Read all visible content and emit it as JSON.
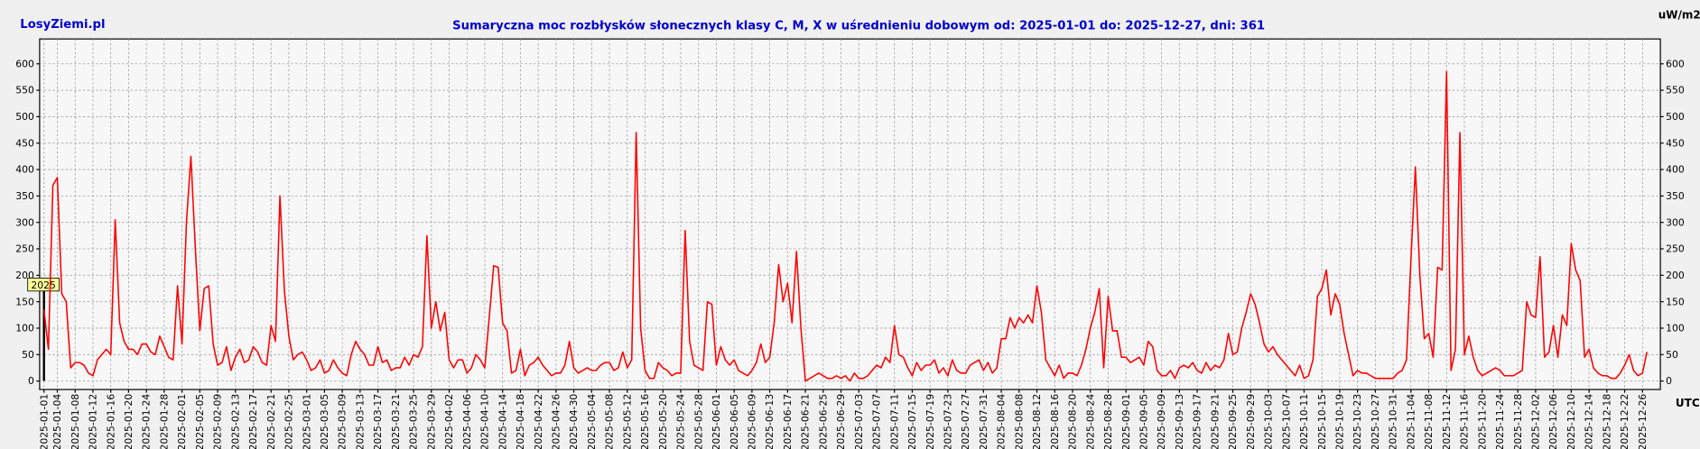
{
  "chart_data": {
    "type": "line",
    "site": "LosyZiemi.pl",
    "title": "Sumaryczna moc rozbłysków słonecznych klasy C, M, X w uśrednieniu dobowym od: 2025-01-01 do: 2025-12-27, dni: 361",
    "y_unit": "uW/m2",
    "x_unit": "UTC",
    "year_marker": "2025",
    "x": [
      "2025-01-01",
      "2025-01-02",
      "2025-01-03",
      "2025-01-04",
      "2025-01-05",
      "2025-01-06",
      "2025-01-07",
      "2025-01-08",
      "2025-01-09",
      "2025-01-10",
      "2025-01-11",
      "2025-01-12",
      "2025-01-13",
      "2025-01-14",
      "2025-01-15",
      "2025-01-16",
      "2025-01-17",
      "2025-01-18",
      "2025-01-19",
      "2025-01-20",
      "2025-01-21",
      "2025-01-22",
      "2025-01-23",
      "2025-01-24",
      "2025-01-25",
      "2025-01-26",
      "2025-01-27",
      "2025-01-28",
      "2025-01-29",
      "2025-01-30",
      "2025-01-31",
      "2025-02-01",
      "2025-02-02",
      "2025-02-03",
      "2025-02-04",
      "2025-02-05",
      "2025-02-06",
      "2025-02-07",
      "2025-02-08",
      "2025-02-09",
      "2025-02-10",
      "2025-02-11",
      "2025-02-12",
      "2025-02-13",
      "2025-02-14",
      "2025-02-15",
      "2025-02-16",
      "2025-02-17",
      "2025-02-18",
      "2025-02-19",
      "2025-02-20",
      "2025-02-21",
      "2025-02-22",
      "2025-02-23",
      "2025-02-24",
      "2025-02-25",
      "2025-02-26",
      "2025-02-27",
      "2025-02-28",
      "2025-03-01",
      "2025-03-02",
      "2025-03-03",
      "2025-03-04",
      "2025-03-05",
      "2025-03-06",
      "2025-03-07",
      "2025-03-08",
      "2025-03-09",
      "2025-03-10",
      "2025-03-11",
      "2025-03-12",
      "2025-03-13",
      "2025-03-14",
      "2025-03-15",
      "2025-03-16",
      "2025-03-17",
      "2025-03-18",
      "2025-03-19",
      "2025-03-20",
      "2025-03-21",
      "2025-03-22",
      "2025-03-23",
      "2025-03-24",
      "2025-03-25",
      "2025-03-26",
      "2025-03-27",
      "2025-03-28",
      "2025-03-29",
      "2025-03-30",
      "2025-03-31",
      "2025-04-01",
      "2025-04-02",
      "2025-04-03",
      "2025-04-04",
      "2025-04-05",
      "2025-04-06",
      "2025-04-07",
      "2025-04-08",
      "2025-04-09",
      "2025-04-10",
      "2025-04-11",
      "2025-04-12",
      "2025-04-13",
      "2025-04-14",
      "2025-04-15",
      "2025-04-16",
      "2025-04-17",
      "2025-04-18",
      "2025-04-19",
      "2025-04-20",
      "2025-04-21",
      "2025-04-22",
      "2025-04-23",
      "2025-04-24",
      "2025-04-25",
      "2025-04-26",
      "2025-04-27",
      "2025-04-28",
      "2025-04-29",
      "2025-04-30",
      "2025-05-01",
      "2025-05-02",
      "2025-05-03",
      "2025-05-04",
      "2025-05-05",
      "2025-05-06",
      "2025-05-07",
      "2025-05-08",
      "2025-05-09",
      "2025-05-10",
      "2025-05-11",
      "2025-05-12",
      "2025-05-13",
      "2025-05-14",
      "2025-05-15",
      "2025-05-16",
      "2025-05-17",
      "2025-05-18",
      "2025-05-19",
      "2025-05-20",
      "2025-05-21",
      "2025-05-22",
      "2025-05-23",
      "2025-05-24",
      "2025-05-25",
      "2025-05-26",
      "2025-05-27",
      "2025-05-28",
      "2025-05-29",
      "2025-05-30",
      "2025-05-31",
      "2025-06-01",
      "2025-06-02",
      "2025-06-03",
      "2025-06-04",
      "2025-06-05",
      "2025-06-06",
      "2025-06-07",
      "2025-06-08",
      "2025-06-09",
      "2025-06-10",
      "2025-06-11",
      "2025-06-12",
      "2025-06-13",
      "2025-06-14",
      "2025-06-15",
      "2025-06-16",
      "2025-06-17",
      "2025-06-18",
      "2025-06-19",
      "2025-06-20",
      "2025-06-21",
      "2025-06-22",
      "2025-06-23",
      "2025-06-24",
      "2025-06-25",
      "2025-06-26",
      "2025-06-27",
      "2025-06-28",
      "2025-06-29",
      "2025-06-30",
      "2025-07-01",
      "2025-07-02",
      "2025-07-03",
      "2025-07-04",
      "2025-07-05",
      "2025-07-06",
      "2025-07-07",
      "2025-07-08",
      "2025-07-09",
      "2025-07-10",
      "2025-07-11",
      "2025-07-12",
      "2025-07-13",
      "2025-07-14",
      "2025-07-15",
      "2025-07-16",
      "2025-07-17",
      "2025-07-18",
      "2025-07-19",
      "2025-07-20",
      "2025-07-21",
      "2025-07-22",
      "2025-07-23",
      "2025-07-24",
      "2025-07-25",
      "2025-07-26",
      "2025-07-27",
      "2025-07-28",
      "2025-07-29",
      "2025-07-30",
      "2025-07-31",
      "2025-08-01",
      "2025-08-02",
      "2025-08-03",
      "2025-08-04",
      "2025-08-05",
      "2025-08-06",
      "2025-08-07",
      "2025-08-08",
      "2025-08-09",
      "2025-08-10",
      "2025-08-11",
      "2025-08-12",
      "2025-08-13",
      "2025-08-14",
      "2025-08-15",
      "2025-08-16",
      "2025-08-17",
      "2025-08-18",
      "2025-08-19",
      "2025-08-20",
      "2025-08-21",
      "2025-08-22",
      "2025-08-23",
      "2025-08-24",
      "2025-08-25",
      "2025-08-26",
      "2025-08-27",
      "2025-08-28",
      "2025-08-29",
      "2025-08-30",
      "2025-08-31",
      "2025-09-01",
      "2025-09-02",
      "2025-09-03",
      "2025-09-04",
      "2025-09-05",
      "2025-09-06",
      "2025-09-07",
      "2025-09-08",
      "2025-09-09",
      "2025-09-10",
      "2025-09-11",
      "2025-09-12",
      "2025-09-13",
      "2025-09-14",
      "2025-09-15",
      "2025-09-16",
      "2025-09-17",
      "2025-09-18",
      "2025-09-19",
      "2025-09-20",
      "2025-09-21",
      "2025-09-22",
      "2025-09-23",
      "2025-09-24",
      "2025-09-25",
      "2025-09-26",
      "2025-09-27",
      "2025-09-28",
      "2025-09-29",
      "2025-09-30",
      "2025-10-01",
      "2025-10-02",
      "2025-10-03",
      "2025-10-04",
      "2025-10-05",
      "2025-10-06",
      "2025-10-07",
      "2025-10-08",
      "2025-10-09",
      "2025-10-10",
      "2025-10-11",
      "2025-10-12",
      "2025-10-13",
      "2025-10-14",
      "2025-10-15",
      "2025-10-16",
      "2025-10-17",
      "2025-10-18",
      "2025-10-19",
      "2025-10-20",
      "2025-10-21",
      "2025-10-22",
      "2025-10-23",
      "2025-10-24",
      "2025-10-25",
      "2025-10-26",
      "2025-10-27",
      "2025-10-28",
      "2025-10-29",
      "2025-10-30",
      "2025-10-31",
      "2025-11-01",
      "2025-11-02",
      "2025-11-03",
      "2025-11-04",
      "2025-11-05",
      "2025-11-06",
      "2025-11-07",
      "2025-11-08",
      "2025-11-09",
      "2025-11-10",
      "2025-11-11",
      "2025-11-12",
      "2025-11-13",
      "2025-11-14",
      "2025-11-15",
      "2025-11-16",
      "2025-11-17",
      "2025-11-18",
      "2025-11-19",
      "2025-11-20",
      "2025-11-21",
      "2025-11-22",
      "2025-11-23",
      "2025-11-24",
      "2025-11-25",
      "2025-11-26",
      "2025-11-27",
      "2025-11-28",
      "2025-11-29",
      "2025-11-30",
      "2025-12-01",
      "2025-12-02",
      "2025-12-03",
      "2025-12-04",
      "2025-12-05",
      "2025-12-06",
      "2025-12-07",
      "2025-12-08",
      "2025-12-09",
      "2025-12-10",
      "2025-12-11",
      "2025-12-12",
      "2025-12-13",
      "2025-12-14",
      "2025-12-15",
      "2025-12-16",
      "2025-12-17",
      "2025-12-18",
      "2025-12-19",
      "2025-12-20",
      "2025-12-21",
      "2025-12-22",
      "2025-12-23",
      "2025-12-24",
      "2025-12-25",
      "2025-12-26",
      "2025-12-27"
    ],
    "series": [
      {
        "color": "#ff0000",
        "values": [
          135,
          60,
          370,
          385,
          165,
          150,
          25,
          35,
          35,
          30,
          15,
          10,
          40,
          50,
          60,
          50,
          305,
          110,
          75,
          60,
          60,
          50,
          70,
          70,
          55,
          50,
          85,
          65,
          45,
          40,
          180,
          70,
          300,
          425,
          250,
          95,
          175,
          180,
          70,
          30,
          35,
          65,
          20,
          45,
          60,
          35,
          40,
          65,
          55,
          35,
          30,
          105,
          75,
          350,
          170,
          85,
          40,
          50,
          55,
          40,
          20,
          25,
          40,
          15,
          20,
          40,
          25,
          15,
          10,
          50,
          75,
          60,
          50,
          30,
          30,
          65,
          35,
          40,
          20,
          25,
          25,
          45,
          30,
          50,
          45,
          65,
          275,
          100,
          150,
          95,
          130,
          40,
          25,
          40,
          40,
          15,
          25,
          50,
          40,
          25,
          120,
          218,
          215,
          110,
          95,
          15,
          20,
          60,
          10,
          30,
          35,
          45,
          30,
          20,
          10,
          15,
          15,
          30,
          75,
          25,
          15,
          20,
          25,
          20,
          20,
          30,
          35,
          35,
          20,
          25,
          55,
          25,
          40,
          470,
          100,
          20,
          5,
          5,
          35,
          25,
          20,
          10,
          15,
          15,
          285,
          75,
          30,
          25,
          20,
          150,
          145,
          30,
          65,
          40,
          30,
          40,
          20,
          15,
          10,
          20,
          35,
          70,
          35,
          45,
          110,
          220,
          150,
          185,
          110,
          245,
          100,
          0,
          5,
          10,
          15,
          10,
          5,
          5,
          10,
          5,
          10,
          0,
          15,
          5,
          5,
          10,
          20,
          30,
          25,
          45,
          35,
          105,
          50,
          45,
          25,
          10,
          35,
          20,
          30,
          30,
          40,
          15,
          25,
          10,
          40,
          20,
          15,
          15,
          30,
          35,
          40,
          20,
          35,
          15,
          25,
          80,
          80,
          120,
          100,
          120,
          110,
          125,
          110,
          180,
          130,
          40,
          25,
          10,
          30,
          5,
          15,
          15,
          10,
          30,
          60,
          100,
          130,
          175,
          25,
          160,
          95,
          95,
          45,
          45,
          35,
          40,
          45,
          30,
          75,
          65,
          20,
          10,
          10,
          20,
          5,
          25,
          30,
          25,
          35,
          20,
          15,
          35,
          20,
          30,
          25,
          40,
          90,
          50,
          55,
          100,
          130,
          165,
          145,
          110,
          70,
          55,
          65,
          50,
          40,
          30,
          20,
          10,
          30,
          5,
          10,
          40,
          160,
          175,
          210,
          125,
          165,
          145,
          90,
          50,
          10,
          20,
          15,
          15,
          10,
          5,
          5,
          5,
          5,
          5,
          15,
          20,
          40,
          230,
          405,
          200,
          80,
          90,
          45,
          215,
          210,
          585,
          20,
          60,
          470,
          50,
          85,
          45,
          20,
          10,
          15,
          20,
          25,
          20,
          10,
          10,
          10,
          15,
          20,
          150,
          125,
          120,
          235,
          45,
          55,
          105,
          45,
          125,
          105,
          260,
          210,
          190,
          45,
          60,
          25,
          15,
          10,
          10,
          5,
          5,
          15,
          30,
          50,
          20,
          10,
          15,
          55
        ]
      }
    ],
    "ylim": [
      -16,
      647
    ],
    "yticks": [
      0,
      50,
      100,
      150,
      200,
      250,
      300,
      350,
      400,
      450,
      500,
      550,
      600
    ],
    "xticks": [
      "2025-01-01",
      "2025-01-04",
      "2025-01-08",
      "2025-01-12",
      "2025-01-16",
      "2025-01-20",
      "2025-01-24",
      "2025-01-28",
      "2025-02-01",
      "2025-02-05",
      "2025-02-09",
      "2025-02-13",
      "2025-02-17",
      "2025-02-21",
      "2025-02-25",
      "2025-03-01",
      "2025-03-05",
      "2025-03-09",
      "2025-03-13",
      "2025-03-17",
      "2025-03-21",
      "2025-03-25",
      "2025-03-29",
      "2025-04-02",
      "2025-04-06",
      "2025-04-10",
      "2025-04-14",
      "2025-04-18",
      "2025-04-22",
      "2025-04-26",
      "2025-04-30",
      "2025-05-04",
      "2025-05-08",
      "2025-05-12",
      "2025-05-16",
      "2025-05-20",
      "2025-05-24",
      "2025-05-28",
      "2025-06-01",
      "2025-06-05",
      "2025-06-09",
      "2025-06-13",
      "2025-06-17",
      "2025-06-21",
      "2025-06-25",
      "2025-06-29",
      "2025-07-03",
      "2025-07-07",
      "2025-07-11",
      "2025-07-15",
      "2025-07-19",
      "2025-07-23",
      "2025-07-27",
      "2025-07-31",
      "2025-08-04",
      "2025-08-08",
      "2025-08-12",
      "2025-08-16",
      "2025-08-20",
      "2025-08-24",
      "2025-08-28",
      "2025-09-01",
      "2025-09-05",
      "2025-09-09",
      "2025-09-13",
      "2025-09-17",
      "2025-09-21",
      "2025-09-25",
      "2025-09-29",
      "2025-10-03",
      "2025-10-07",
      "2025-10-11",
      "2025-10-15",
      "2025-10-19",
      "2025-10-23",
      "2025-10-27",
      "2025-10-31",
      "2025-11-04",
      "2025-11-08",
      "2025-11-12",
      "2025-11-16",
      "2025-11-20",
      "2025-11-24",
      "2025-11-28",
      "2025-12-02",
      "2025-12-06",
      "2025-12-10",
      "2025-12-14",
      "2025-12-18",
      "2025-12-22",
      "2025-12-26"
    ],
    "grid": true
  }
}
